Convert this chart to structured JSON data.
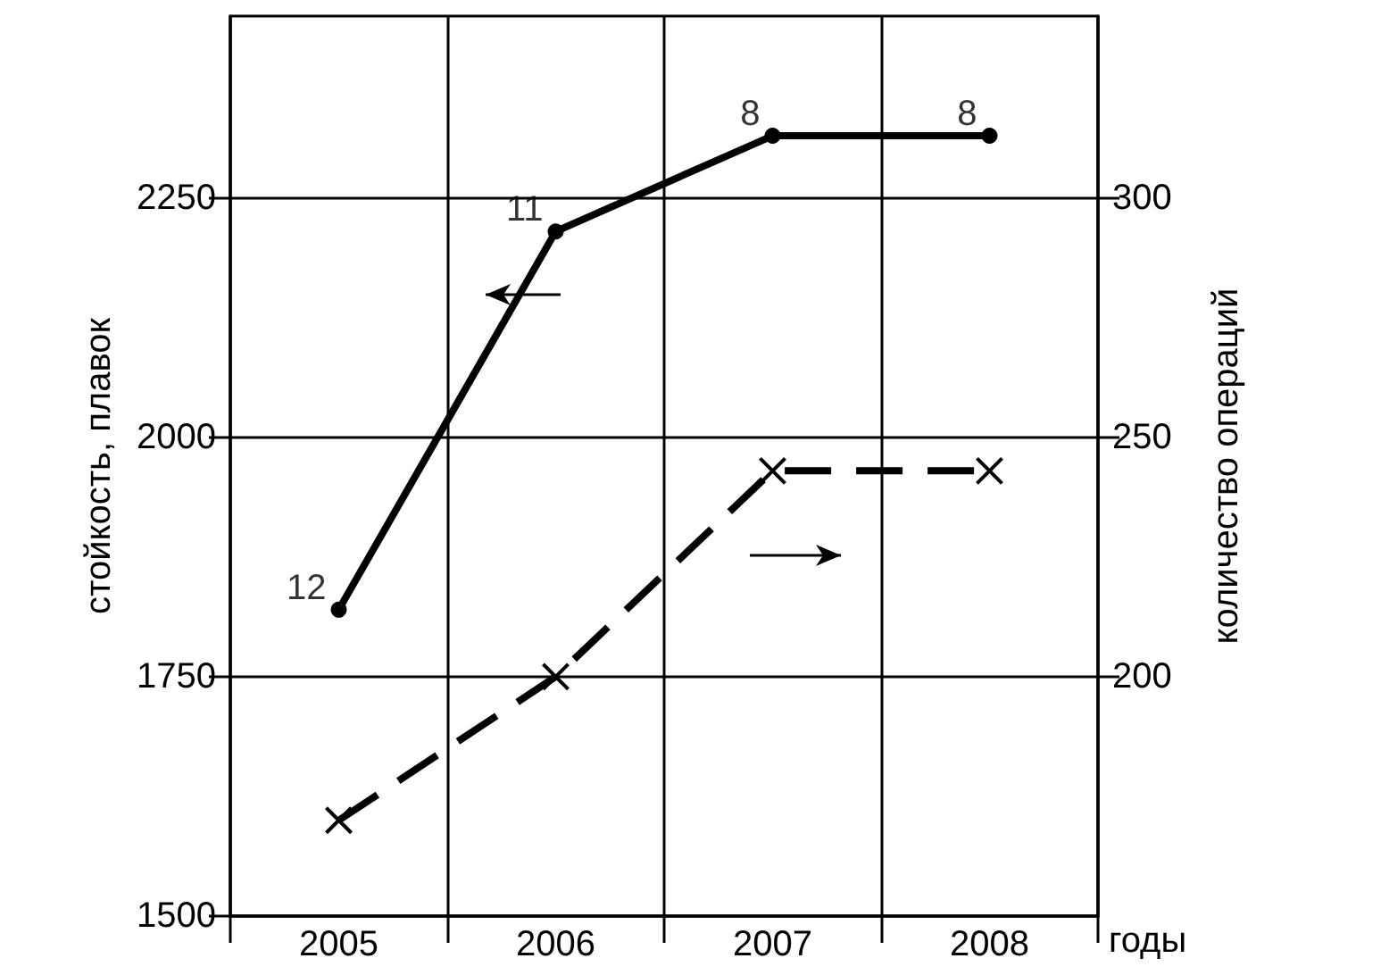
{
  "chart_data": {
    "type": "line",
    "xlabel": "годы",
    "ylabel": "стойкость, плавок",
    "y2label": "количество операций",
    "categories": [
      "2005",
      "2006",
      "2007",
      "2008"
    ],
    "series": [
      {
        "color": "#000000",
        "values": [
          1820,
          2215,
          2315,
          2315
        ],
        "marker": "circle",
        "line_style": "solid"
      },
      {
        "color": "#000000",
        "values": [
          170,
          200,
          243,
          243
        ],
        "marker": "cross",
        "line_style": "dashed",
        "axis": "y2"
      }
    ],
    "ylim": [
      1500,
      2440
    ],
    "yticks": [
      1500,
      1750,
      2000,
      2250
    ],
    "y2lim": [
      150,
      338
    ],
    "y2ticks": [
      200,
      250,
      300
    ],
    "annotations": [
      {
        "text": "12",
        "x": "2005",
        "y": 1820
      },
      {
        "text": "11",
        "x": "2006",
        "y": 2215
      },
      {
        "text": "8",
        "x": "2007",
        "y": 2315
      },
      {
        "text": "8",
        "x": "2008",
        "y": 2315
      }
    ],
    "grid": true
  }
}
